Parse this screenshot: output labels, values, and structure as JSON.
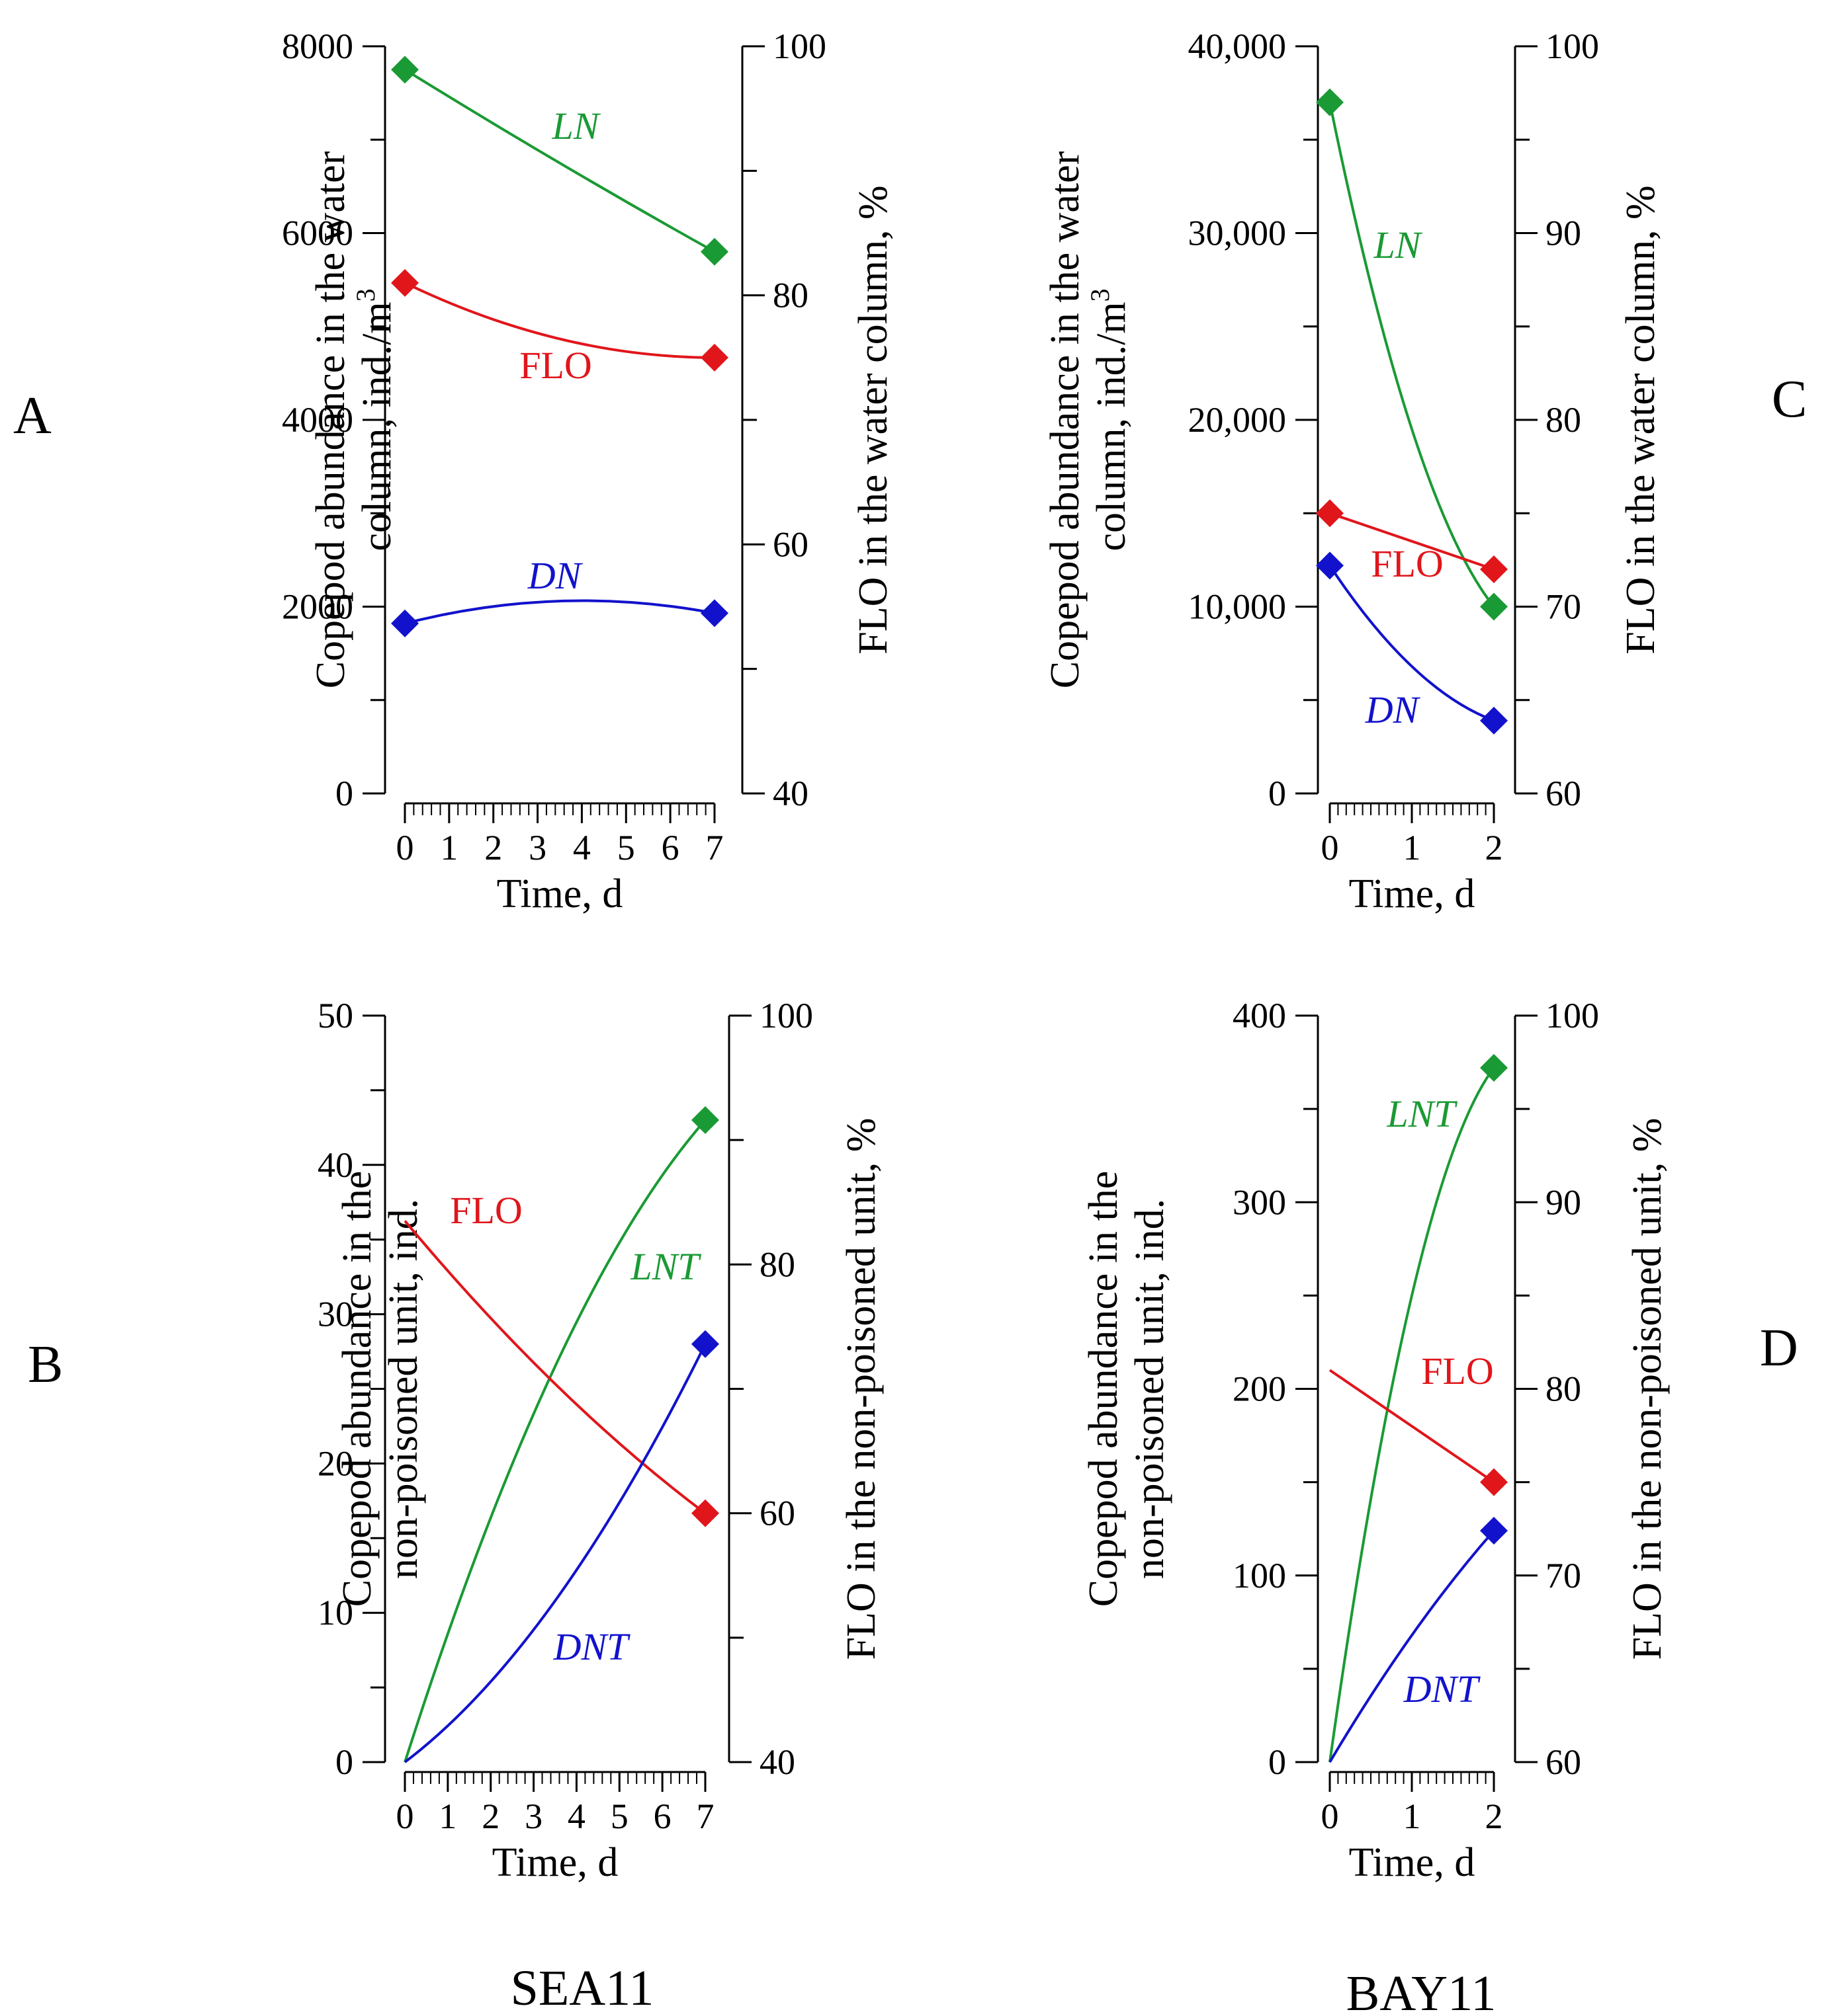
{
  "panel_letters": {
    "A": "A",
    "B": "B",
    "C": "C",
    "D": "D"
  },
  "site_labels": {
    "left": "SEA11",
    "right": "BAY11"
  },
  "colors": {
    "LN": "#1a9a34",
    "FLO": "#e0161b",
    "DN": "#1212cc"
  },
  "chart_data": [
    {
      "id": "A",
      "type": "line",
      "xlabel": "Time, d",
      "xlim": [
        0,
        7
      ],
      "xticks": [
        "0",
        "1",
        "2",
        "3",
        "4",
        "5",
        "6",
        "7"
      ],
      "ylabel_lines": [
        "Copepod abundance in the water",
        "column, ind./m",
        "3"
      ],
      "ylim": [
        0,
        8000
      ],
      "yticks": [
        "0",
        "2000",
        "4000",
        "6000",
        "8000"
      ],
      "y2label": "FLO in the water column, %",
      "y2lim": [
        40,
        100
      ],
      "y2ticks": [
        "40",
        "60",
        "80",
        "100"
      ],
      "series": [
        {
          "name": "LN",
          "axis": "left",
          "x": [
            0,
            7
          ],
          "values": [
            7750,
            5800
          ],
          "mid": 6750
        },
        {
          "name": "FLO",
          "axis": "right",
          "x": [
            0,
            7
          ],
          "values": [
            81,
            75
          ],
          "mid": 76.5
        },
        {
          "name": "DN",
          "axis": "left",
          "x": [
            0,
            7
          ],
          "values": [
            1820,
            1930
          ],
          "mid": 2060
        }
      ]
    },
    {
      "id": "B",
      "type": "line",
      "xlabel": "Time, d",
      "xlim": [
        0,
        7
      ],
      "xticks": [
        "0",
        "1",
        "2",
        "3",
        "4",
        "5",
        "6",
        "7"
      ],
      "ylabel_lines": [
        "Copepod abundance in the",
        "non-poisoned unit, ind."
      ],
      "ylim": [
        0,
        50
      ],
      "yticks": [
        "0",
        "10",
        "20",
        "30",
        "40",
        "50"
      ],
      "y2label": "FLO in the non-poisoned unit, %",
      "y2lim": [
        40,
        100
      ],
      "y2ticks": [
        "40",
        "60",
        "80",
        "100"
      ],
      "series": [
        {
          "name": "LNT",
          "axis": "left",
          "x": [
            0,
            7
          ],
          "values": [
            0,
            43
          ],
          "mid": 26.5,
          "marker_end_only": true
        },
        {
          "name": "FLO",
          "axis": "right",
          "x": [
            0,
            7
          ],
          "values": [
            83.5,
            60
          ],
          "mid": 70.4,
          "marker_end_only": true
        },
        {
          "name": "DNT",
          "axis": "left",
          "x": [
            0,
            7
          ],
          "values": [
            0,
            28
          ],
          "mid": 10.8,
          "marker_end_only": true
        }
      ]
    },
    {
      "id": "C",
      "type": "line",
      "xlabel": "Time, d",
      "xlim": [
        0,
        2
      ],
      "xticks": [
        "0",
        "1",
        "2"
      ],
      "ylabel_lines": [
        "Copepod abundance in the water",
        "column, ind./m",
        "3"
      ],
      "ylim": [
        0,
        40000
      ],
      "yticks": [
        "0",
        "10,000",
        "20,000",
        "30,000",
        "40,000"
      ],
      "y2label": "FLO in the water column, %",
      "y2lim": [
        60,
        100
      ],
      "y2ticks": [
        "60",
        "70",
        "80",
        "90",
        "100"
      ],
      "series": [
        {
          "name": "LN",
          "axis": "left",
          "x": [
            0,
            2
          ],
          "values": [
            37000,
            10000
          ],
          "mid": 19500
        },
        {
          "name": "FLO",
          "axis": "right",
          "x": [
            0,
            2
          ],
          "values": [
            75,
            72
          ],
          "mid": 73.5
        },
        {
          "name": "DN",
          "axis": "left",
          "x": [
            0,
            2
          ],
          "values": [
            12200,
            3900
          ],
          "mid": 6800
        }
      ]
    },
    {
      "id": "D",
      "type": "line",
      "xlabel": "Time, d",
      "xlim": [
        0,
        2
      ],
      "xticks": [
        "0",
        "1",
        "2"
      ],
      "ylabel_lines": [
        "Copepod abundance in the",
        "non-poisoned unit, ind."
      ],
      "ylim": [
        0,
        400
      ],
      "yticks": [
        "0",
        "100",
        "200",
        "300",
        "400"
      ],
      "y2label": "FLO in the non-poisoned unit, %",
      "y2lim": [
        60,
        100
      ],
      "y2ticks": [
        "60",
        "70",
        "80",
        "90",
        "100"
      ],
      "series": [
        {
          "name": "LNT",
          "axis": "left",
          "x": [
            0,
            2
          ],
          "values": [
            0,
            372
          ],
          "mid": 250,
          "marker_end_only": true
        },
        {
          "name": "FLO",
          "axis": "right",
          "x": [
            0,
            2
          ],
          "values": [
            81,
            75
          ],
          "mid": 78,
          "marker_end_only": true
        },
        {
          "name": "DNT",
          "axis": "left",
          "x": [
            0,
            2
          ],
          "values": [
            0,
            124
          ],
          "mid": 68,
          "marker_end_only": true
        }
      ]
    }
  ]
}
